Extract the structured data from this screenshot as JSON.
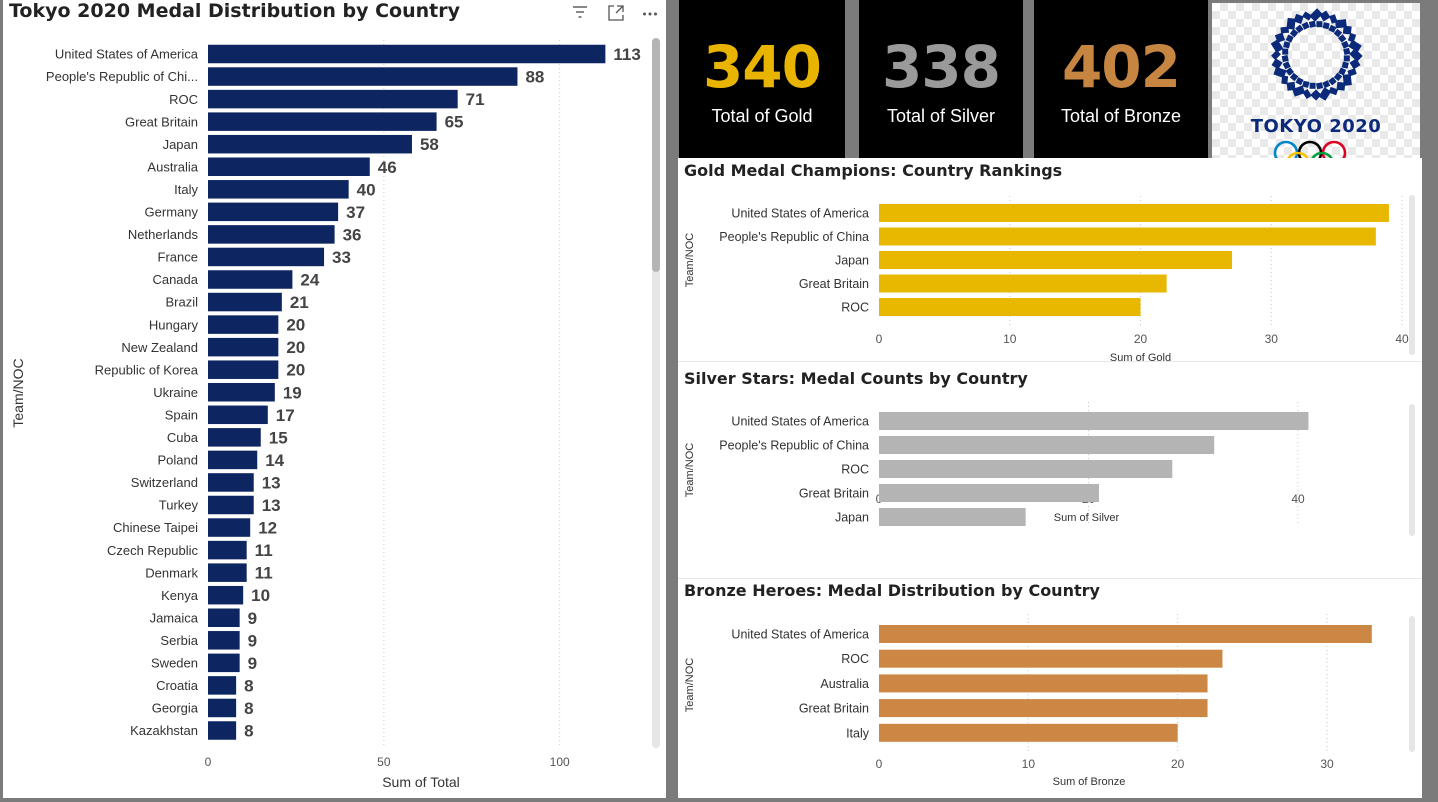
{
  "kpis": [
    {
      "value": "340",
      "label": "Total of Gold",
      "color": "#e8b400"
    },
    {
      "value": "338",
      "label": "Total of Silver",
      "color": "#9a9a9a"
    },
    {
      "value": "402",
      "label": "Total of Bronze",
      "color": "#c68642"
    }
  ],
  "logo": {
    "text": "TOKYO 2020"
  },
  "colors": {
    "navy": "#0d2561",
    "gold": "#e8b800",
    "silver": "#b4b4b4",
    "bronze": "#cd8745"
  },
  "chart_data": [
    {
      "type": "bar",
      "orientation": "horizontal",
      "title": "Tokyo 2020 Medal Distribution by Country",
      "xlabel": "Sum of Total",
      "ylabel": "Team/NOC",
      "xlim": [
        0,
        120
      ],
      "xticks": [
        0,
        50,
        100
      ],
      "categories": [
        "United States of America",
        "People's Republic of Chi...",
        "ROC",
        "Great Britain",
        "Japan",
        "Australia",
        "Italy",
        "Germany",
        "Netherlands",
        "France",
        "Canada",
        "Brazil",
        "Hungary",
        "New Zealand",
        "Republic of Korea",
        "Ukraine",
        "Spain",
        "Cuba",
        "Poland",
        "Switzerland",
        "Turkey",
        "Chinese Taipei",
        "Czech Republic",
        "Denmark",
        "Kenya",
        "Jamaica",
        "Serbia",
        "Sweden",
        "Croatia",
        "Georgia",
        "Kazakhstan"
      ],
      "values": [
        113,
        88,
        71,
        65,
        58,
        46,
        40,
        37,
        36,
        33,
        24,
        21,
        20,
        20,
        20,
        19,
        17,
        15,
        14,
        13,
        13,
        12,
        11,
        11,
        10,
        9,
        9,
        9,
        8,
        8,
        8
      ],
      "data_labels": true,
      "grid": true,
      "color": "#0d2561"
    },
    {
      "type": "bar",
      "orientation": "horizontal",
      "title": "Gold Medal Champions: Country Rankings",
      "xlabel": "Sum of Gold",
      "ylabel": "Team/NOC",
      "xlim": [
        0,
        40
      ],
      "xticks": [
        0,
        10,
        20,
        30,
        40
      ],
      "categories": [
        "United States of America",
        "People's Republic of China",
        "Japan",
        "Great Britain",
        "ROC"
      ],
      "values": [
        39,
        38,
        27,
        22,
        20
      ],
      "grid": true,
      "color": "#e8b800"
    },
    {
      "type": "bar",
      "orientation": "horizontal",
      "title": "Silver Stars: Medal Counts by Country",
      "xlabel": "Sum of Silver",
      "ylabel": "Team/NOC",
      "xlim": [
        0,
        40
      ],
      "xticks": [
        0,
        20,
        40
      ],
      "categories": [
        "United States of America",
        "People's Republic of China",
        "ROC",
        "Great Britain",
        "Japan"
      ],
      "values": [
        41,
        32,
        28,
        21,
        14
      ],
      "grid": true,
      "color": "#b4b4b4"
    },
    {
      "type": "bar",
      "orientation": "horizontal",
      "title": "Bronze Heroes: Medal Distribution by Country",
      "xlabel": "Sum of Bronze",
      "ylabel": "Team/NOC",
      "xlim": [
        0,
        30
      ],
      "xticks": [
        0,
        10,
        20,
        30
      ],
      "categories": [
        "United States of America",
        "ROC",
        "Australia",
        "Great Britain",
        "Italy"
      ],
      "values": [
        33,
        23,
        22,
        22,
        20
      ],
      "grid": true,
      "color": "#cd8745"
    }
  ]
}
